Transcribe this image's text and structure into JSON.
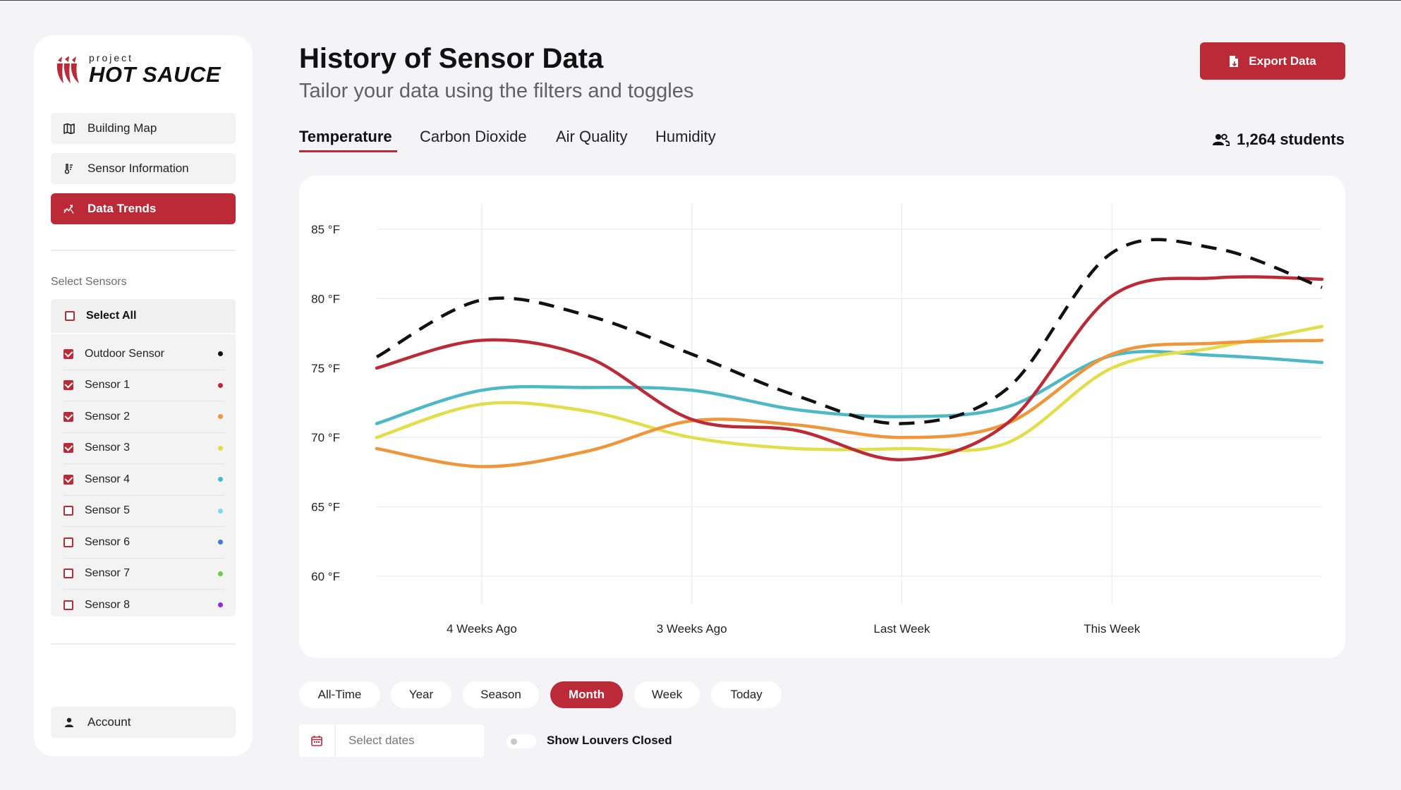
{
  "logo": {
    "small": "project",
    "big": "HOT SAUCE"
  },
  "nav": {
    "building_map": "Building Map",
    "sensor_information": "Sensor Information",
    "data_trends": "Data Trends",
    "account": "Account"
  },
  "sensors": {
    "section_label": "Select Sensors",
    "select_all": "Select All",
    "items": [
      {
        "label": "Outdoor Sensor",
        "checked": true,
        "color": "#111111"
      },
      {
        "label": "Sensor 1",
        "checked": true,
        "color": "#bb2a36"
      },
      {
        "label": "Sensor 2",
        "checked": true,
        "color": "#f0963a"
      },
      {
        "label": "Sensor 3",
        "checked": true,
        "color": "#e2de4a"
      },
      {
        "label": "Sensor 4",
        "checked": true,
        "color": "#4db8c6"
      },
      {
        "label": "Sensor 5",
        "checked": false,
        "color": "#7fd7f2"
      },
      {
        "label": "Sensor 6",
        "checked": false,
        "color": "#3a7be0"
      },
      {
        "label": "Sensor 7",
        "checked": false,
        "color": "#6fc94a"
      },
      {
        "label": "Sensor 8",
        "checked": false,
        "color": "#8a2be2"
      }
    ]
  },
  "header": {
    "title": "History of Sensor Data",
    "subtitle": "Tailor your data using the filters and toggles",
    "export_label": "Export Data",
    "students": "1,264 students"
  },
  "tabs": [
    "Temperature",
    "Carbon Dioxide",
    "Air Quality",
    "Humidity"
  ],
  "ranges": {
    "items": [
      "All-Time",
      "Year",
      "Season",
      "Month",
      "Week",
      "Today"
    ],
    "active": "Month"
  },
  "date_picker": {
    "placeholder": "Select dates"
  },
  "toggle": {
    "label": "Show Louvers Closed",
    "on": false
  },
  "chart_data": {
    "type": "line",
    "y_ticks": [
      "85 °F",
      "80 °F",
      "75 °F",
      "70 °F",
      "65 °F",
      "60 °F"
    ],
    "ylim": [
      60,
      85
    ],
    "x_labels": [
      "4 Weeks Ago",
      "3 Weeks Ago",
      "Last Week",
      "This Week"
    ],
    "x_positions": [
      0.5,
      1.5,
      2.5,
      3.5
    ],
    "xlim": [
      0,
      4.5
    ],
    "grid": true,
    "series": [
      {
        "name": "Outdoor Sensor",
        "color": "#111111",
        "dashed": true,
        "points": [
          [
            0,
            75.8
          ],
          [
            0.5,
            79.9
          ],
          [
            1,
            78.8
          ],
          [
            1.5,
            76.0
          ],
          [
            2,
            73.0
          ],
          [
            2.5,
            71.0
          ],
          [
            3,
            73.5
          ],
          [
            3.5,
            83.3
          ],
          [
            4,
            83.6
          ],
          [
            4.5,
            80.8
          ]
        ]
      },
      {
        "name": "Sensor 1",
        "color": "#bb2a36",
        "points": [
          [
            0,
            75.0
          ],
          [
            0.5,
            77.0
          ],
          [
            1,
            75.8
          ],
          [
            1.5,
            71.3
          ],
          [
            2,
            70.5
          ],
          [
            2.5,
            68.4
          ],
          [
            3,
            71.0
          ],
          [
            3.5,
            80.2
          ],
          [
            4,
            81.5
          ],
          [
            4.5,
            81.4
          ]
        ]
      },
      {
        "name": "Sensor 2",
        "color": "#f0963a",
        "points": [
          [
            0,
            69.2
          ],
          [
            0.5,
            67.9
          ],
          [
            1,
            69.0
          ],
          [
            1.5,
            71.2
          ],
          [
            2,
            70.9
          ],
          [
            2.5,
            70.0
          ],
          [
            3,
            71.0
          ],
          [
            3.5,
            76.0
          ],
          [
            4,
            76.8
          ],
          [
            4.5,
            77.0
          ]
        ]
      },
      {
        "name": "Sensor 3",
        "color": "#e2de4a",
        "points": [
          [
            0,
            70.0
          ],
          [
            0.5,
            72.4
          ],
          [
            1,
            71.9
          ],
          [
            1.5,
            70.0
          ],
          [
            2,
            69.2
          ],
          [
            2.5,
            69.2
          ],
          [
            3,
            69.6
          ],
          [
            3.5,
            75.0
          ],
          [
            4,
            76.5
          ],
          [
            4.5,
            78.0
          ]
        ]
      },
      {
        "name": "Sensor 4",
        "color": "#4db8c6",
        "points": [
          [
            0,
            71.0
          ],
          [
            0.5,
            73.4
          ],
          [
            1,
            73.6
          ],
          [
            1.5,
            73.4
          ],
          [
            2,
            72.0
          ],
          [
            2.5,
            71.5
          ],
          [
            3,
            72.2
          ],
          [
            3.5,
            75.9
          ],
          [
            4,
            75.9
          ],
          [
            4.5,
            75.4
          ]
        ]
      }
    ]
  },
  "colors": {
    "accent": "#bb2a36",
    "background": "#f4f4f6"
  }
}
